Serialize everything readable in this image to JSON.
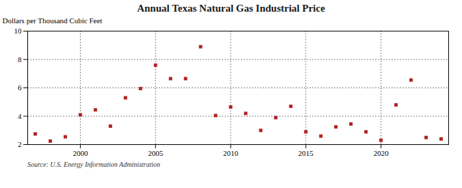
{
  "chart_data": {
    "type": "scatter",
    "title": "Annual Texas Natural Gas Industrial Price",
    "ylabel": "Dollars per Thousand Cubic Feet",
    "annotations": [
      "Source: U.S. Energy Information Administration"
    ],
    "x": [
      1997,
      1998,
      1999,
      2000,
      2001,
      2002,
      2003,
      2004,
      2005,
      2006,
      2007,
      2008,
      2009,
      2010,
      2011,
      2012,
      2013,
      2014,
      2015,
      2016,
      2017,
      2018,
      2019,
      2020,
      2021,
      2022,
      2023,
      2024
    ],
    "values": [
      2.75,
      2.25,
      2.55,
      4.1,
      4.45,
      3.3,
      5.3,
      5.95,
      7.6,
      6.65,
      6.65,
      8.9,
      4.05,
      4.65,
      4.2,
      3.0,
      3.9,
      4.7,
      2.9,
      2.6,
      3.25,
      3.45,
      2.9,
      2.3,
      4.8,
      6.55,
      2.5,
      2.4
    ],
    "color": "#b22222",
    "marker": "square",
    "xlim": [
      1996.5,
      2024.5
    ],
    "xticks": [
      2000,
      2005,
      2010,
      2015,
      2020
    ],
    "ylim": [
      2,
      10
    ],
    "yticks": [
      2,
      4,
      6,
      8,
      10
    ],
    "grid": true
  }
}
